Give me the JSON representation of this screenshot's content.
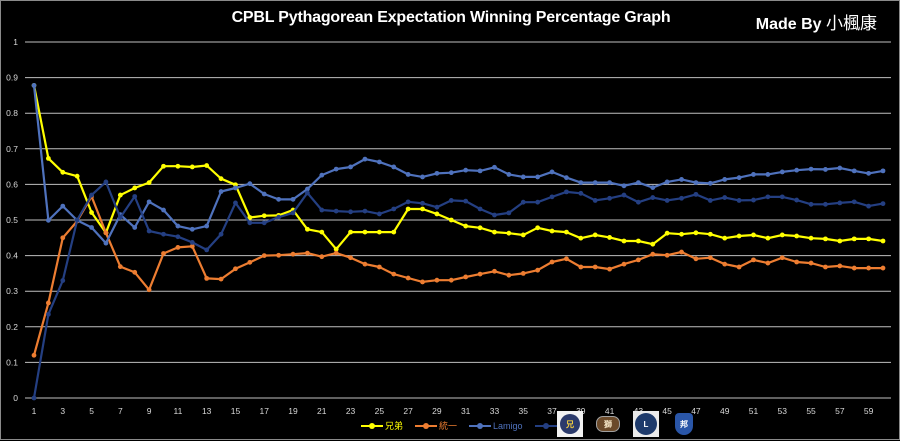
{
  "chart_data": {
    "type": "line",
    "title": "CPBL Pythagorean Expectation Winning Percentage Graph",
    "credit": "Made By",
    "credit_name": "小楓康",
    "xlabel": "",
    "ylabel": "",
    "ylim": [
      0,
      1
    ],
    "yticks": [
      "0",
      "0.1",
      "0.2",
      "0.3",
      "0.4",
      "0.5",
      "0.6",
      "0.7",
      "0.8",
      "0.9",
      "1"
    ],
    "xticks": [
      "1",
      "3",
      "5",
      "7",
      "9",
      "11",
      "13",
      "15",
      "17",
      "19",
      "21",
      "23",
      "25",
      "27",
      "29",
      "31",
      "33",
      "35",
      "37",
      "39",
      "41",
      "43",
      "45",
      "47",
      "49",
      "51",
      "53",
      "55",
      "57",
      "59"
    ],
    "grid": true,
    "legend_position": "bottom",
    "x": [
      1,
      2,
      3,
      4,
      5,
      6,
      7,
      8,
      9,
      10,
      11,
      12,
      13,
      14,
      15,
      16,
      17,
      18,
      19,
      20,
      21,
      22,
      23,
      24,
      25,
      26,
      27,
      28,
      29,
      30,
      31,
      32,
      33,
      34,
      35,
      36,
      37,
      38,
      39,
      40,
      41,
      42,
      43,
      44,
      45,
      46,
      47,
      48,
      49,
      50,
      51,
      52,
      53,
      54,
      55,
      56,
      57,
      58,
      59,
      60
    ],
    "series": [
      {
        "name": "兄弟",
        "color": "#ffff00",
        "values": [
          0.878,
          0.673,
          0.634,
          0.623,
          0.521,
          0.464,
          0.57,
          0.59,
          0.605,
          0.651,
          0.651,
          0.649,
          0.653,
          0.616,
          0.599,
          0.507,
          0.512,
          0.513,
          0.528,
          0.474,
          0.466,
          0.418,
          0.466,
          0.466,
          0.466,
          0.466,
          0.531,
          0.531,
          0.517,
          0.5,
          0.483,
          0.478,
          0.466,
          0.463,
          0.458,
          0.478,
          0.469,
          0.466,
          0.449,
          0.458,
          0.451,
          0.441,
          0.441,
          0.432,
          0.463,
          0.46,
          0.464,
          0.46,
          0.449,
          0.455,
          0.458,
          0.449,
          0.458,
          0.455,
          0.449,
          0.447,
          0.441,
          0.447,
          0.447,
          0.441
        ]
      },
      {
        "name": "統一",
        "color": "#ed7d31",
        "values": [
          0.12,
          0.267,
          0.45,
          0.497,
          0.566,
          0.464,
          0.369,
          0.353,
          0.304,
          0.406,
          0.423,
          0.426,
          0.336,
          0.334,
          0.363,
          0.381,
          0.4,
          0.401,
          0.404,
          0.407,
          0.397,
          0.407,
          0.394,
          0.376,
          0.368,
          0.348,
          0.337,
          0.326,
          0.331,
          0.331,
          0.34,
          0.348,
          0.356,
          0.345,
          0.35,
          0.359,
          0.382,
          0.391,
          0.368,
          0.368,
          0.362,
          0.376,
          0.388,
          0.404,
          0.401,
          0.41,
          0.391,
          0.394,
          0.376,
          0.368,
          0.388,
          0.379,
          0.394,
          0.382,
          0.379,
          0.368,
          0.371,
          0.365,
          0.365,
          0.365
        ]
      },
      {
        "name": "Lamigo",
        "color": "#4f72bd",
        "values": [
          0.878,
          0.499,
          0.539,
          0.499,
          0.479,
          0.435,
          0.515,
          0.479,
          0.551,
          0.528,
          0.483,
          0.474,
          0.483,
          0.58,
          0.59,
          0.602,
          0.573,
          0.558,
          0.558,
          0.587,
          0.626,
          0.643,
          0.649,
          0.671,
          0.663,
          0.649,
          0.628,
          0.621,
          0.631,
          0.633,
          0.64,
          0.638,
          0.648,
          0.628,
          0.621,
          0.621,
          0.635,
          0.619,
          0.605,
          0.605,
          0.605,
          0.596,
          0.605,
          0.591,
          0.607,
          0.614,
          0.605,
          0.603,
          0.614,
          0.619,
          0.628,
          0.628,
          0.635,
          0.64,
          0.643,
          0.642,
          0.646,
          0.638,
          0.631,
          0.638
        ]
      },
      {
        "name": "富邦",
        "color": "#243f82",
        "values": [
          0.0,
          0.235,
          0.33,
          0.5,
          0.57,
          0.607,
          0.507,
          0.566,
          0.469,
          0.46,
          0.453,
          0.437,
          0.416,
          0.46,
          0.548,
          0.492,
          0.492,
          0.508,
          0.52,
          0.576,
          0.528,
          0.525,
          0.523,
          0.525,
          0.517,
          0.531,
          0.551,
          0.547,
          0.536,
          0.555,
          0.553,
          0.531,
          0.514,
          0.52,
          0.55,
          0.55,
          0.565,
          0.579,
          0.575,
          0.555,
          0.561,
          0.57,
          0.55,
          0.563,
          0.555,
          0.561,
          0.572,
          0.555,
          0.563,
          0.555,
          0.556,
          0.565,
          0.565,
          0.556,
          0.544,
          0.544,
          0.548,
          0.551,
          0.539,
          0.546
        ]
      }
    ]
  },
  "logos": [
    {
      "team": "兄弟",
      "icon": "brothers-logo",
      "glyph": "兄"
    },
    {
      "team": "統一",
      "icon": "lions-logo",
      "glyph": "獅"
    },
    {
      "team": "Lamigo",
      "icon": "lamigo-logo",
      "glyph": "L"
    },
    {
      "team": "富邦",
      "icon": "fubon-logo",
      "glyph": "邦"
    }
  ]
}
